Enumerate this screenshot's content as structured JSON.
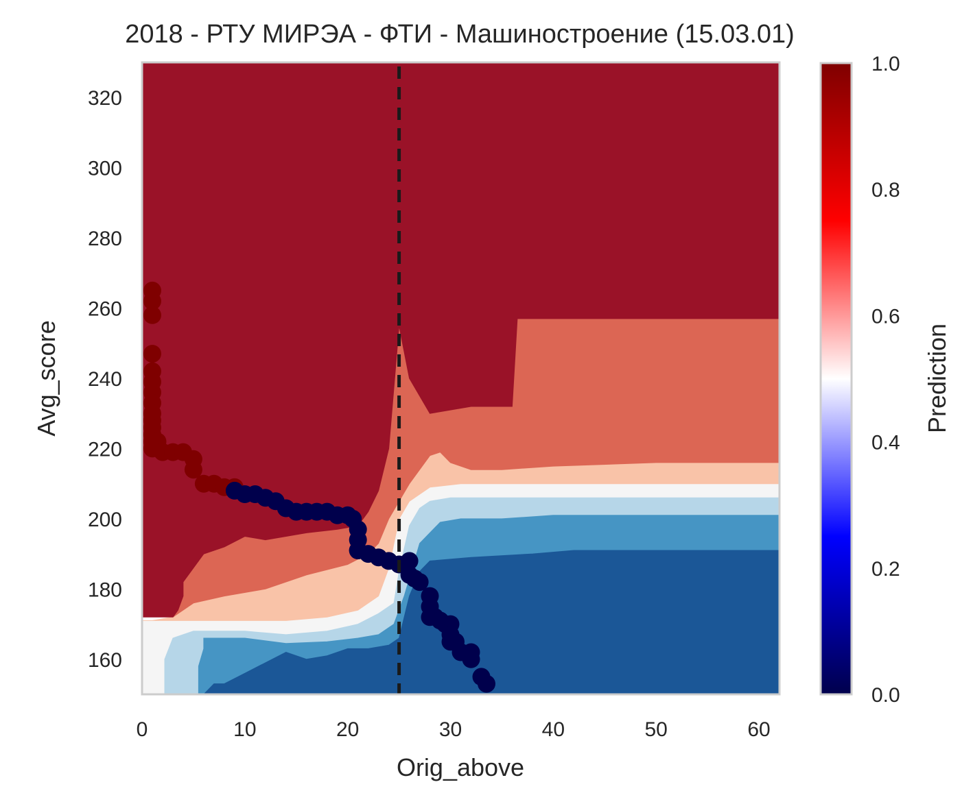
{
  "chart_data": {
    "type": "heatmap",
    "title": "2018 - РТУ МИРЭА - ФТИ - Машиностроение (15.03.01)",
    "xlabel": "Orig_above",
    "ylabel": "Avg_score",
    "xlim": [
      0,
      62
    ],
    "ylim": [
      150,
      330
    ],
    "xticks": [
      0,
      10,
      20,
      30,
      40,
      50,
      60
    ],
    "yticks": [
      160,
      180,
      200,
      220,
      240,
      260,
      280,
      300,
      320
    ],
    "grid": false,
    "colorbar": {
      "label": "Prediction",
      "range": [
        0,
        1
      ],
      "ticks": [
        "0.0",
        "0.2",
        "0.4",
        "0.6",
        "0.8",
        "1.0"
      ],
      "colormap": "seismic"
    },
    "contour_colors": {
      "p_0_1": "#1b5797",
      "p_1_2": "#4695c4",
      "p_2_3": "#b6d6e8",
      "p_3_4": "#f5f5f5",
      "p_4_5": "#f9c3a8",
      "p_5_6": "#dc6654",
      "p_6_7": "#9a1228"
    },
    "cutoff_line": {
      "x": 25,
      "style": "dashed",
      "color": "#1a1a1a"
    },
    "points_admitted": {
      "color": "#7f0000",
      "prediction": 1,
      "x": [
        1,
        1,
        1,
        1,
        1,
        1,
        1,
        1,
        1,
        1,
        1,
        1,
        1,
        1,
        1.5,
        2,
        3,
        4,
        5,
        5,
        6,
        7,
        8,
        9
      ],
      "y": [
        265,
        262,
        258,
        247,
        242,
        239,
        236,
        233,
        230,
        228,
        226,
        224,
        222,
        220,
        222,
        219,
        219,
        219,
        217,
        214,
        210,
        210,
        209,
        209
      ]
    },
    "points_rejected": {
      "color": "#00004c",
      "prediction": 0,
      "x": [
        9,
        10,
        11,
        12,
        13,
        14,
        15,
        16,
        17,
        18,
        19,
        20,
        20.5,
        21,
        21,
        21,
        21,
        22,
        23,
        24,
        25,
        26,
        26,
        26.5,
        27,
        28,
        28,
        28,
        28.5,
        29,
        29.5,
        30,
        30,
        30,
        30.5,
        31,
        32,
        32,
        33,
        33.5
      ],
      "y": [
        208,
        207,
        207,
        206,
        205,
        203,
        202,
        202,
        202,
        202,
        201,
        201,
        200,
        197,
        194,
        191,
        191,
        190,
        189,
        188,
        187,
        188,
        184,
        183,
        182,
        178,
        175,
        172,
        172,
        171,
        170,
        170,
        167,
        165,
        165,
        162,
        162,
        160,
        155,
        153
      ]
    }
  }
}
